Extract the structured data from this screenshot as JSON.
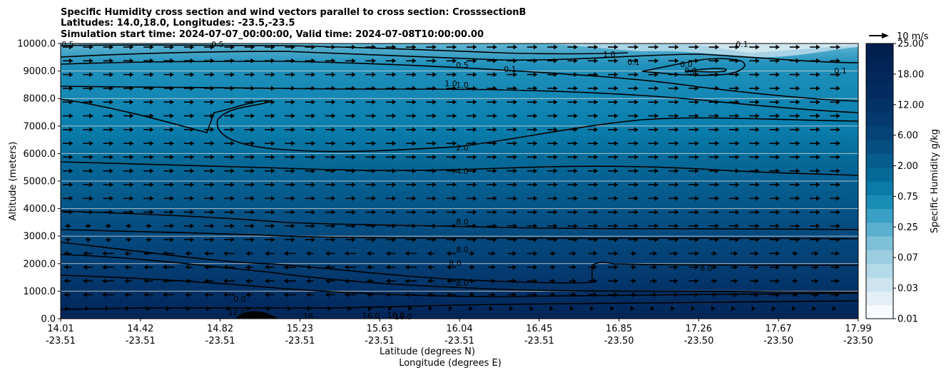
{
  "chart_data": {
    "type": "contour",
    "title_lines": [
      "Specific Humidity cross section and wind vectors parallel to cross section: CrosssectionB",
      "Latitudes: 14.0,18.0, Longitudes: -23.5,-23.5",
      "Simulation start time: 2024-07-07_00:00:00, Valid time: 2024-07-08T10:00:00.00"
    ],
    "ylabel": "Altitude (meters)",
    "xlabel_lat": "Latitude (degrees N)",
    "xlabel_lon": "Longitude (degrees E)",
    "yticks": [
      "0.0",
      "1000.0",
      "2000.0",
      "3000.0",
      "4000.0",
      "5000.0",
      "6000.0",
      "7000.0",
      "8000.0",
      "9000.0",
      "10000.0"
    ],
    "ylim": [
      0,
      10000
    ],
    "xtick_lat": [
      "14.01",
      "14.42",
      "14.82",
      "15.23",
      "15.63",
      "16.04",
      "16.45",
      "16.85",
      "17.26",
      "17.67",
      "17.99"
    ],
    "xtick_lon": [
      "-23.51",
      "-23.51",
      "-23.51",
      "-23.51",
      "-23.51",
      "-23.51",
      "-23.51",
      "-23.50",
      "-23.50",
      "-23.50",
      "-23.50"
    ],
    "colorbar": {
      "label": "Specific Humidity g/kg",
      "ticks": [
        "0.01",
        "0.03",
        "0.07",
        "0.25",
        "0.75",
        "2.00",
        "6.00",
        "12.00",
        "18.00",
        "25.00"
      ],
      "levels": 20
    },
    "wind_key_label": "10 m/s",
    "contour_labels": [
      "0.5",
      "0.5",
      "0.5",
      "0.1",
      "0.1",
      "0.1",
      "1.0",
      "0.0",
      "0.0",
      "0.1",
      "1.0",
      "1.0",
      "2.0",
      "4.0",
      "8.0",
      "8.0",
      "8.0",
      "8.0",
      "8.0",
      "0.0",
      "12.0",
      "16",
      "16.0",
      "16.0",
      "16.0"
    ],
    "colors": [
      "#f7fbff",
      "#e3eef5",
      "#cde4ee",
      "#b4d9e8",
      "#9bcde1",
      "#7fc0d9",
      "#5cb0cf",
      "#3a9fc4",
      "#1a8db7",
      "#0a7aa8",
      "#066a99",
      "#055c8d",
      "#054e80",
      "#054377",
      "#043a6e",
      "#043366",
      "#032d60",
      "#03285a",
      "#022355",
      "#021f4f"
    ]
  }
}
